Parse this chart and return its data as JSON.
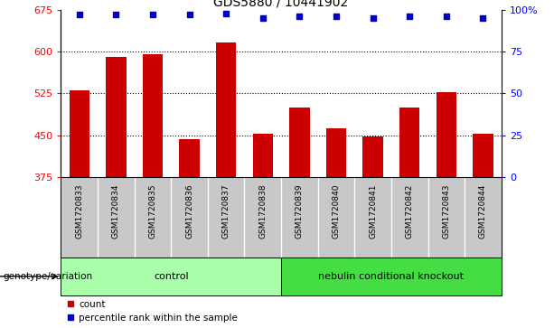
{
  "title": "GDS5880 / 10441902",
  "samples": [
    "GSM1720833",
    "GSM1720834",
    "GSM1720835",
    "GSM1720836",
    "GSM1720837",
    "GSM1720838",
    "GSM1720839",
    "GSM1720840",
    "GSM1720841",
    "GSM1720842",
    "GSM1720843",
    "GSM1720844"
  ],
  "counts": [
    530,
    590,
    595,
    443,
    617,
    453,
    500,
    462,
    448,
    500,
    527,
    453
  ],
  "percentiles": [
    97,
    97,
    97,
    97,
    98,
    95,
    96,
    96,
    95,
    96,
    96,
    95
  ],
  "bar_color": "#cc0000",
  "dot_color": "#0000cc",
  "ylim_left": [
    375,
    675
  ],
  "ylim_right": [
    0,
    100
  ],
  "yticks_left": [
    375,
    450,
    525,
    600,
    675
  ],
  "yticks_right": [
    0,
    25,
    50,
    75,
    100
  ],
  "yright_labels": [
    "0",
    "25",
    "50",
    "75",
    "100%"
  ],
  "grid_values": [
    450,
    525,
    600
  ],
  "group_defs": [
    {
      "start": 0,
      "end": 5,
      "label": "control",
      "color": "#aaffaa"
    },
    {
      "start": 6,
      "end": 11,
      "label": "nebulin conditional knockout",
      "color": "#44dd44"
    }
  ],
  "group_label": "genotype/variation",
  "legend_items": [
    {
      "label": "count",
      "color": "#cc0000"
    },
    {
      "label": "percentile rank within the sample",
      "color": "#0000cc"
    }
  ],
  "bar_width": 0.55,
  "background_color": "#ffffff",
  "plot_bg_color": "#ffffff",
  "tick_area_color": "#c8c8c8"
}
